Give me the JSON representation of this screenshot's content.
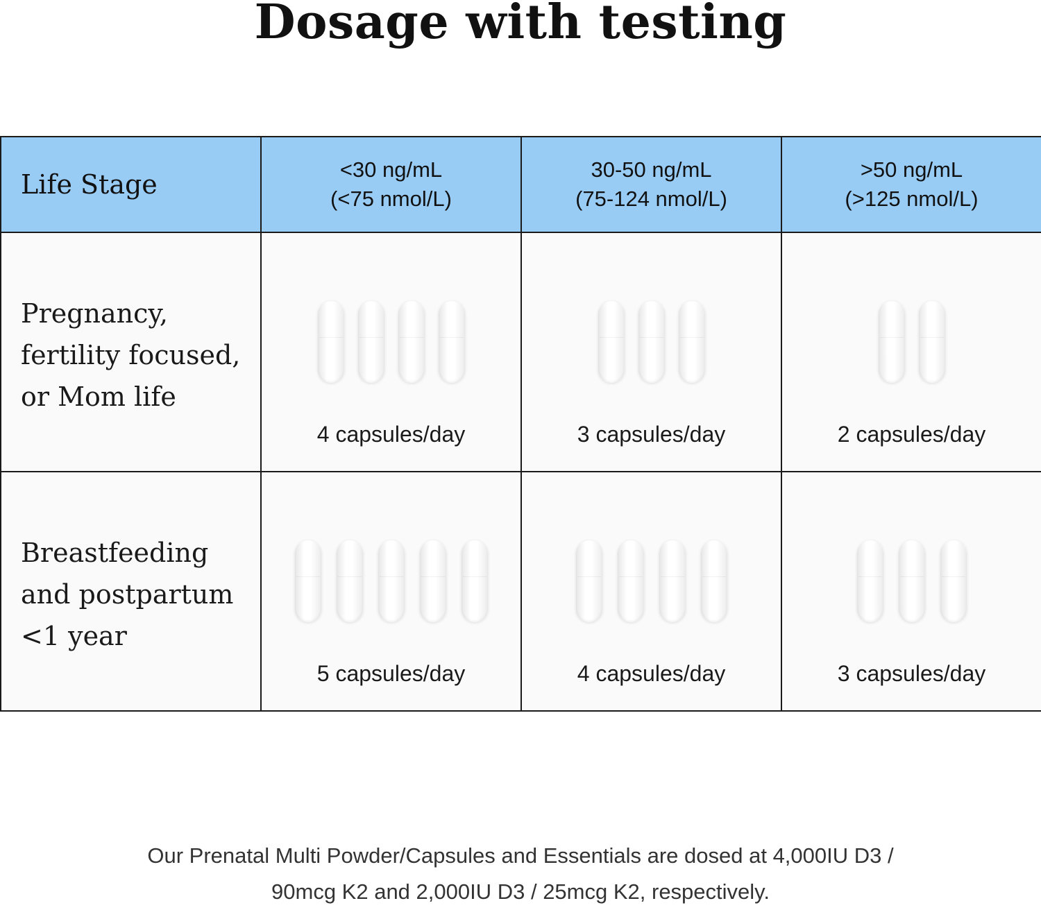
{
  "title": "Dosage with testing",
  "table": {
    "header": {
      "stage_label": "Life Stage",
      "columns": [
        {
          "line1": "<30 ng/mL",
          "line2": "(<75 nmol/L)"
        },
        {
          "line1": "30-50 ng/mL",
          "line2": "(75-124 nmol/L)"
        },
        {
          "line1": ">50 ng/mL",
          "line2": "(>125 nmol/L)"
        }
      ]
    },
    "rows": [
      {
        "stage_lines": [
          "Pregnancy,",
          "fertility focused,",
          "or Mom life"
        ],
        "doses": [
          {
            "capsules": 4,
            "label": "4 capsules/day"
          },
          {
            "capsules": 3,
            "label": "3 capsules/day"
          },
          {
            "capsules": 2,
            "label": "2 capsules/day"
          }
        ]
      },
      {
        "stage_lines": [
          "Breastfeeding",
          "and postpartum",
          "<1 year"
        ],
        "doses": [
          {
            "capsules": 5,
            "label": "5 capsules/day"
          },
          {
            "capsules": 4,
            "label": "4 capsules/day"
          },
          {
            "capsules": 3,
            "label": "3 capsules/day"
          }
        ]
      }
    ]
  },
  "footnote": {
    "line1": "Our Prenatal Multi Powder/Capsules and Essentials are dosed at 4,000IU D3 /",
    "line2": "90mcg K2 and 2,000IU D3 / 25mcg K2, respectively."
  },
  "colors": {
    "header_bg": "#99ccf5",
    "cell_bg": "#fafafa",
    "border": "#1a1a1a"
  },
  "icons": {
    "capsule": "capsule-icon"
  }
}
